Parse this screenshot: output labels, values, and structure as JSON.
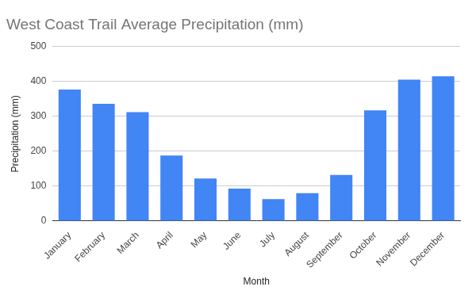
{
  "chart_data": {
    "type": "bar",
    "title": "West Coast Trail Average Precipitation (mm)",
    "x_label": "Month",
    "y_label": "Precipitation (mm)",
    "categories": [
      "January",
      "February",
      "March",
      "April",
      "May",
      "June",
      "July",
      "August",
      "September",
      "October",
      "November",
      "December"
    ],
    "values": [
      377,
      336,
      312,
      188,
      122,
      93,
      63,
      80,
      132,
      317,
      405,
      415
    ],
    "color": "#4285f4",
    "ylim": [
      0,
      500
    ],
    "yticks": [
      0,
      100,
      200,
      300,
      400,
      500
    ],
    "grid": true
  }
}
